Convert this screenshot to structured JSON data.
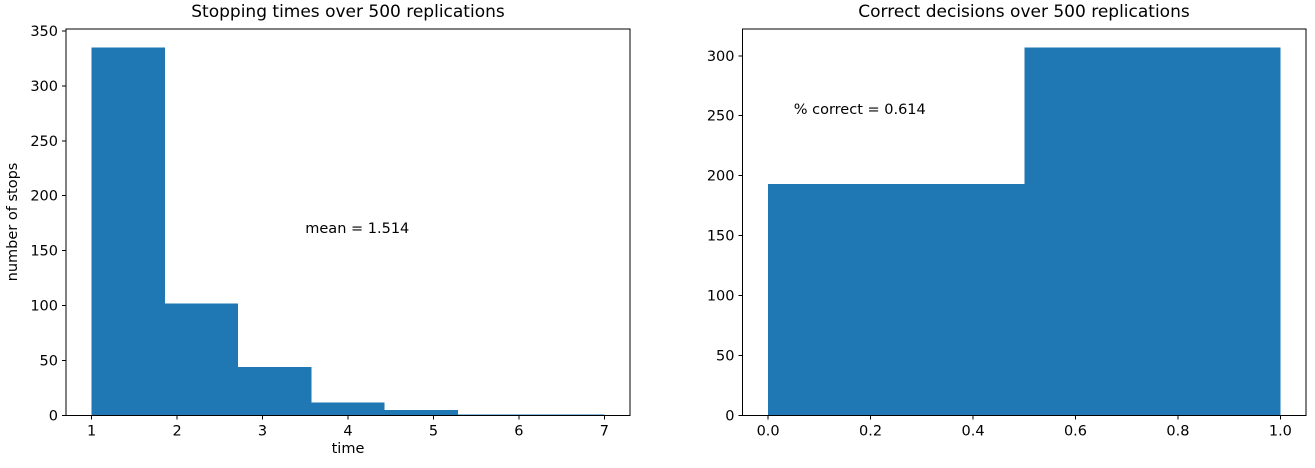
{
  "figure": {
    "background": "#ffffff",
    "bar_color": "#1f77b4",
    "axis_color": "#000000",
    "text_color": "#000000"
  },
  "chart_data": [
    {
      "type": "bar",
      "subtype": "histogram",
      "title": "Stopping times over 500 replications",
      "xlabel": "time",
      "ylabel": "number of stops",
      "bin_edges": [
        1,
        1.8571,
        2.7143,
        3.5714,
        4.4286,
        5.2857,
        6.1429,
        7
      ],
      "counts": [
        335,
        102,
        44,
        12,
        5,
        1,
        1
      ],
      "x_ticks": [
        1,
        2,
        3,
        4,
        5,
        6,
        7
      ],
      "x_tick_labels": [
        "1",
        "2",
        "3",
        "4",
        "5",
        "6",
        "7"
      ],
      "y_ticks": [
        0,
        50,
        100,
        150,
        200,
        250,
        300,
        350
      ],
      "y_tick_labels": [
        "0",
        "50",
        "100",
        "150",
        "200",
        "250",
        "300",
        "350"
      ],
      "xlim": [
        0.7,
        7.3
      ],
      "ylim": [
        0,
        351.75
      ],
      "grid": false,
      "legend": null,
      "annotation": {
        "text": "mean = 1.514",
        "x": 3.5,
        "y": 170
      },
      "mean": 1.514
    },
    {
      "type": "bar",
      "subtype": "histogram",
      "title": "Correct decisions over 500 replications",
      "xlabel": "",
      "ylabel": "",
      "bin_edges": [
        0,
        0.5,
        1.0
      ],
      "counts": [
        193,
        307
      ],
      "x_ticks": [
        0,
        0.2,
        0.4,
        0.6,
        0.8,
        1.0
      ],
      "x_tick_labels": [
        "0.0",
        "0.2",
        "0.4",
        "0.6",
        "0.8",
        "1.0"
      ],
      "y_ticks": [
        0,
        50,
        100,
        150,
        200,
        250,
        300
      ],
      "y_tick_labels": [
        "0",
        "50",
        "100",
        "150",
        "200",
        "250",
        "300"
      ],
      "xlim": [
        -0.05,
        1.05
      ],
      "ylim": [
        0,
        322.35
      ],
      "grid": false,
      "legend": null,
      "annotation": {
        "text": "% correct = 0.614",
        "x": 0.05,
        "y": 255
      },
      "percent_correct": 0.614
    }
  ]
}
